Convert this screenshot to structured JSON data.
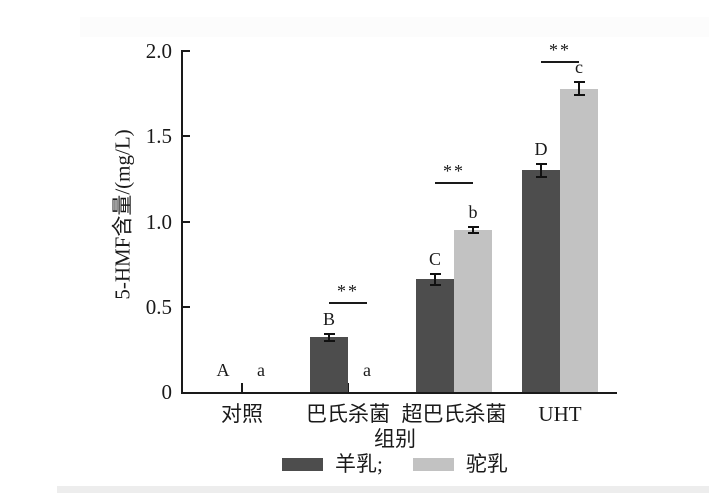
{
  "figure": {
    "background": "#ffffff",
    "axis_color": "#1a1a1a",
    "edge_strip_color": "#ededed"
  },
  "chart_data": {
    "type": "bar",
    "title": "",
    "categories": [
      "对照",
      "巴氏杀菌",
      "超巴氏杀菌",
      "UHT"
    ],
    "series": [
      {
        "name": "羊乳",
        "key": "goat-milk",
        "color": "#4d4d4d",
        "values": [
          0,
          0.32,
          0.66,
          1.3
        ],
        "errors": [
          0,
          0.02,
          0.03,
          0.04
        ],
        "letters": [
          "A",
          "B",
          "C",
          "D"
        ]
      },
      {
        "name": "驼乳",
        "key": "camel-milk",
        "color": "#c2c2c2",
        "values": [
          0,
          0,
          0.95,
          1.78
        ],
        "errors": [
          0,
          0,
          0.02,
          0.04
        ],
        "letters": [
          "a",
          "a",
          "b",
          "c"
        ]
      }
    ],
    "xlabel": "组别",
    "ylabel": "5-HMF含量/(mg/L)",
    "ylim": [
      0,
      2.0
    ],
    "yticks": [
      0,
      0.5,
      1.0,
      1.5,
      2.0
    ],
    "ytick_labels": [
      "0",
      "0.5",
      "1.0",
      "1.5",
      "2.0"
    ],
    "grid": false,
    "legend_position": "bottom-center",
    "significance_markers": [
      {
        "category_index": 1,
        "label": "**",
        "line_y_value": 0.53
      },
      {
        "category_index": 2,
        "label": "**",
        "line_y_value": 1.23
      },
      {
        "category_index": 3,
        "label": "**",
        "line_y_value": 1.94
      }
    ]
  },
  "legend": {
    "items": [
      {
        "label": "羊乳;"
      },
      {
        "label": "驼乳"
      }
    ]
  }
}
